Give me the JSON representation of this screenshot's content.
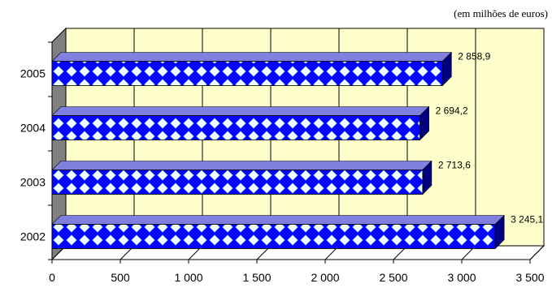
{
  "chart_data": {
    "type": "bar",
    "orientation": "horizontal",
    "style": "3d",
    "unit_note": "(em milhões de euros)",
    "categories": [
      "2005",
      "2004",
      "2003",
      "2002"
    ],
    "values": [
      2858.9,
      2694.2,
      2713.6,
      3245.1
    ],
    "value_labels": [
      "2 858,9",
      "2 694,2",
      "2 713,6",
      "3 245,1"
    ],
    "xlim": [
      0,
      3500
    ],
    "x_ticks": [
      0,
      500,
      1000,
      1500,
      2000,
      2500,
      3000,
      3500
    ],
    "x_tick_labels": [
      "0",
      "500",
      "1 000",
      "1 500",
      "2 000",
      "2 500",
      "3 000",
      "3 500"
    ],
    "grid": true,
    "colors": {
      "plot_back_wall": "#ffffcc",
      "plot_side_wall": "#808080",
      "bar_fill": "#0000ff",
      "bar_pattern": "#ccffff",
      "bar_top": "#8080e0",
      "bar_end": "#000080",
      "gridline": "#000000"
    }
  }
}
